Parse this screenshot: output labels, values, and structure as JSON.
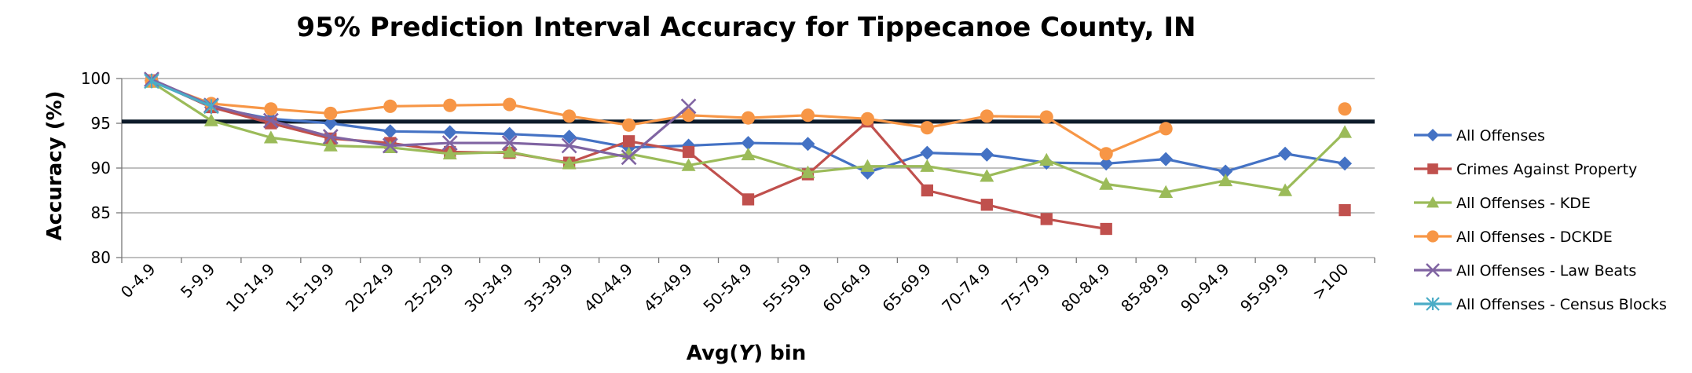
{
  "chart_data": {
    "type": "line",
    "title": "95% Prediction Interval Accuracy for Tippecanoe County, IN",
    "xlabel_prefix": "Avg(",
    "xlabel_var": "Y",
    "xlabel_suffix": ") bin",
    "ylabel": "Accuracy (%)",
    "ylim": [
      80,
      100
    ],
    "yticks": [
      80,
      85,
      90,
      95,
      100
    ],
    "grid": true,
    "legend_position": "right",
    "reference_line": {
      "value": 95.2,
      "color": "#0d1b2a"
    },
    "categories": [
      "0-4.9",
      "5-9.9",
      "10-14.9",
      "15-19.9",
      "20-24.9",
      "25-29.9",
      "30-34.9",
      "35-39.9",
      "40-44.9",
      "45-49.9",
      "50-54.9",
      "55-59.9",
      "60-64.9",
      "65-69.9",
      "70-74.9",
      "75-79.9",
      "80-84.9",
      "85-89.9",
      "90-94.9",
      "95-99.9",
      ">100"
    ],
    "series": [
      {
        "name": "All Offenses",
        "color": "#4472c4",
        "marker": "diamond",
        "values": [
          99.8,
          96.8,
          95.5,
          95.0,
          94.1,
          94.0,
          93.8,
          93.5,
          92.3,
          92.5,
          92.8,
          92.7,
          89.5,
          91.7,
          91.5,
          90.6,
          90.5,
          91.0,
          89.6,
          91.6,
          90.5
        ]
      },
      {
        "name": "Crimes Against Property",
        "color": "#c0504d",
        "marker": "square",
        "values": [
          99.8,
          96.8,
          95.0,
          93.3,
          92.8,
          91.8,
          91.7,
          90.6,
          93.0,
          91.8,
          86.5,
          89.3,
          95.2,
          87.5,
          85.9,
          84.3,
          83.2,
          null,
          null,
          null,
          85.3
        ]
      },
      {
        "name": "All Offenses - KDE",
        "color": "#9bbb59",
        "marker": "triangle",
        "values": [
          99.6,
          95.3,
          93.4,
          92.5,
          92.3,
          91.6,
          91.8,
          90.5,
          91.6,
          90.3,
          91.5,
          89.5,
          90.2,
          90.2,
          89.1,
          90.9,
          88.2,
          87.3,
          88.6,
          87.5,
          94.0
        ]
      },
      {
        "name": "All Offenses - DCKDE",
        "color": "#f79646",
        "marker": "circle",
        "values": [
          99.7,
          97.2,
          96.6,
          96.1,
          96.9,
          97.0,
          97.1,
          95.8,
          94.8,
          95.9,
          95.6,
          95.9,
          95.5,
          94.5,
          95.8,
          95.7,
          91.6,
          94.4,
          null,
          null,
          96.6
        ]
      },
      {
        "name": "All Offenses - Law Beats",
        "color": "#8064a2",
        "marker": "x",
        "values": [
          99.9,
          97.0,
          95.3,
          93.5,
          92.5,
          92.8,
          92.8,
          92.5,
          91.2,
          96.9,
          null,
          null,
          null,
          null,
          null,
          null,
          null,
          null,
          null,
          null,
          null
        ]
      },
      {
        "name": "All Offenses - Census Blocks",
        "color": "#4bacc6",
        "marker": "star",
        "values": [
          99.7,
          96.9,
          null,
          null,
          null,
          null,
          null,
          null,
          null,
          null,
          null,
          null,
          null,
          null,
          null,
          null,
          null,
          null,
          null,
          null,
          null
        ]
      }
    ]
  }
}
